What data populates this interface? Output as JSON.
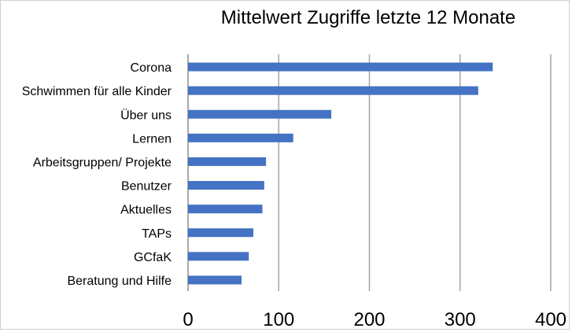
{
  "chart_data": {
    "type": "bar",
    "orientation": "horizontal",
    "title": "Mittelwert Zugriffe letzte 12 Monate",
    "xlabel": "",
    "ylabel": "",
    "categories": [
      "Corona",
      "Schwimmen für alle Kinder",
      "Über uns",
      "Lernen",
      "Arbeitsgruppen/ Projekte",
      "Benutzer",
      "Aktuelles",
      "TAPs",
      "GCfaK",
      "Beratung und Hilfe"
    ],
    "values": [
      336,
      320,
      158,
      116,
      86,
      84,
      82,
      72,
      67,
      59
    ],
    "xlim": [
      0,
      400
    ],
    "xticks": [
      0,
      100,
      200,
      300,
      400
    ],
    "grid": "vertical",
    "legend": "none",
    "bar_color": "#4472c4"
  }
}
